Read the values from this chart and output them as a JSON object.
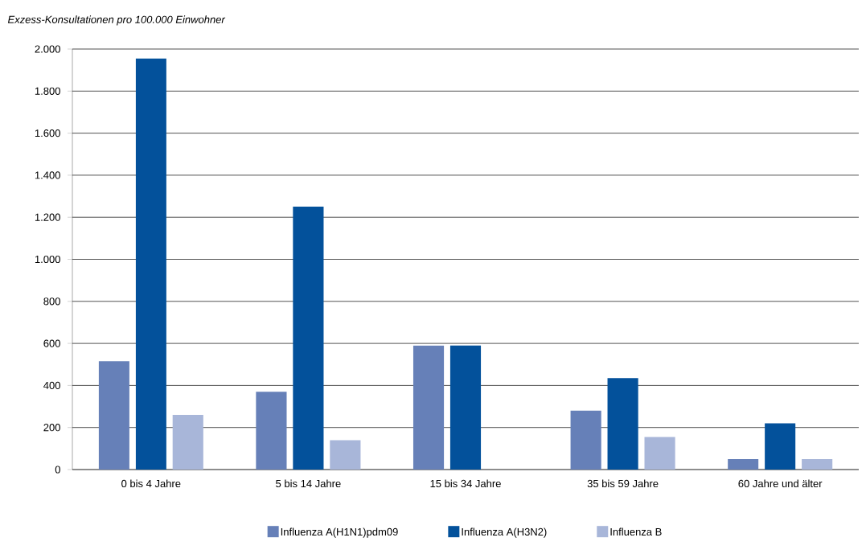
{
  "chart_data": {
    "type": "bar",
    "ylabel": "Exzess-Konsultationen pro 100.000 Einwohner",
    "categories": [
      "0 bis 4 Jahre",
      "5 bis 14 Jahre",
      "15 bis 34 Jahre",
      "35 bis 59 Jahre",
      "60 Jahre und älter"
    ],
    "series": [
      {
        "name": "Influenza A(H1N1)pdm09",
        "color": "#6680b8",
        "values": [
          515,
          370,
          590,
          280,
          50
        ]
      },
      {
        "name": "Influenza A(H3N2)",
        "color": "#03519b",
        "values": [
          1955,
          1250,
          590,
          435,
          220
        ]
      },
      {
        "name": "Influenza B",
        "color": "#a8b6d9",
        "values": [
          260,
          140,
          null,
          155,
          50
        ]
      }
    ],
    "ylim": [
      0,
      2000
    ],
    "yticks": [
      0,
      200,
      400,
      600,
      800,
      {
        "value": 1000,
        "label": "1.000"
      },
      {
        "value": 1200,
        "label": "1.200"
      },
      {
        "value": 1400,
        "label": "1.400"
      },
      {
        "value": 1600,
        "label": "1.600"
      },
      {
        "value": 1800,
        "label": "1.800"
      },
      {
        "value": 2000,
        "label": "2.000"
      }
    ],
    "grid": "y",
    "legend": "bottom"
  }
}
